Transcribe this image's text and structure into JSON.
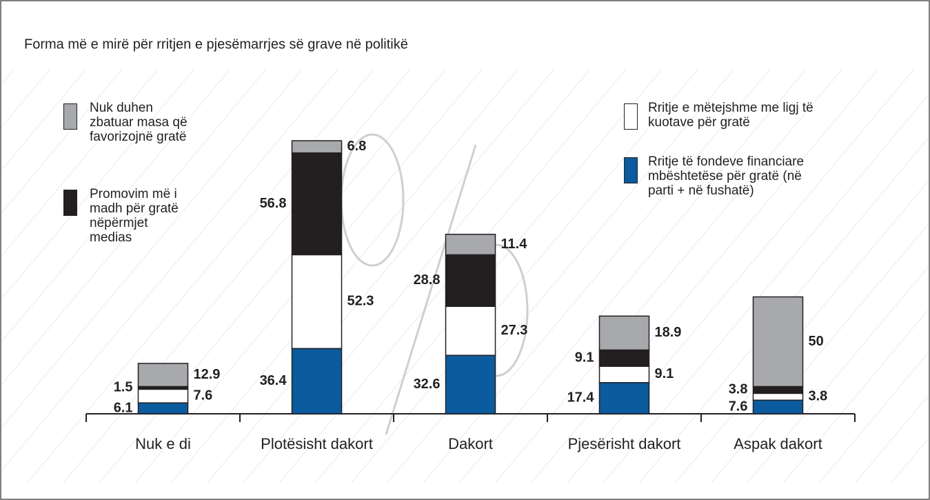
{
  "chart_data": {
    "type": "stacked_bar",
    "title": "Forma më e mirë për rritjen e pjesëmarrjes së grave në politikë",
    "categories": [
      "Nuk e di",
      "Plotësisht dakort",
      "Dakort",
      "Pjesërisht dakort",
      "Aspak dakort"
    ],
    "series": [
      {
        "name": "Rritje të fondeve financiare mbështetëse për gratë (në parti + në fushatë)",
        "color": "#0b5b9e",
        "values": [
          6.1,
          36.4,
          32.6,
          17.4,
          7.6
        ]
      },
      {
        "name": "Rritje e mëtejshme me ligj të kuotave për gratë",
        "color": "#ffffff",
        "values": [
          7.6,
          52.3,
          27.3,
          9.1,
          3.8
        ]
      },
      {
        "name": "Promovim më i madh për gratë nëpërmjet medias",
        "color": "#231f20",
        "values": [
          1.5,
          56.8,
          28.8,
          9.1,
          3.8
        ]
      },
      {
        "name": "Nuk duhen zbatuar masa që favorizojnë gratë",
        "color": "#a7a9ac",
        "values": [
          12.9,
          6.8,
          11.4,
          18.9,
          50
        ]
      }
    ]
  }
}
